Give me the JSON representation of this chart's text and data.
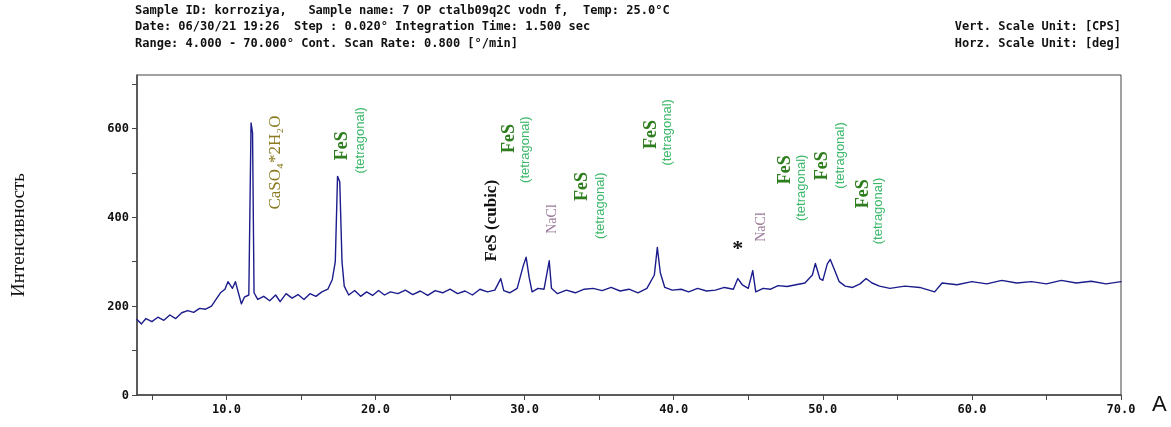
{
  "chart_data": {
    "type": "line",
    "ylabel": "Интенсивность",
    "annotations": [
      "Sample ID: korroziya,   Sample name: 7 OP ctalb09q2C vodn f,  Temp: 25.0°C",
      "Date: 06/30/21 19:26  Step : 0.020° Integration Time: 1.500 sec",
      "Vert. Scale Unit: [CPS]",
      "Range: 4.000 - 70.000° Cont. Scan Rate: 0.800 [°/min]",
      "Horz. Scale Unit: [deg]",
      "A",
      "CaSO₄*2H₂O",
      "FeS",
      "(tetragonal)",
      "FeS (cubic)",
      "FeS",
      "(tetragonal)",
      "NaCl",
      "FeS",
      "(tetragonal)",
      "FeS",
      "(tetragonal)",
      "*",
      "NaCl",
      "FeS",
      "(tetragonal)",
      "FeS",
      "(tetragonal)",
      "FeS",
      "(tetragonal)"
    ],
    "xlim": [
      4,
      70
    ],
    "xticks": [
      {
        "value": 5,
        "label": null
      },
      {
        "value": 10,
        "label": "10.0"
      },
      {
        "value": 15,
        "label": null
      },
      {
        "value": 20,
        "label": "20.0"
      },
      {
        "value": 25,
        "label": null
      },
      {
        "value": 30,
        "label": "30.0"
      },
      {
        "value": 35,
        "label": null
      },
      {
        "value": 40,
        "label": "40.0"
      },
      {
        "value": 45,
        "label": null
      },
      {
        "value": 50,
        "label": "50.0"
      },
      {
        "value": 55,
        "label": null
      },
      {
        "value": 60,
        "label": "60.0"
      },
      {
        "value": 65,
        "label": null
      },
      {
        "value": 70,
        "label": "70.0"
      }
    ],
    "ylim": [
      0,
      720
    ],
    "yticks": [
      0,
      {
        "value": 100,
        "label": null
      },
      200,
      {
        "value": 300,
        "label": null
      },
      400,
      {
        "value": 500,
        "label": null
      },
      600,
      {
        "value": 700,
        "label": null
      }
    ],
    "grid": false,
    "marker": "none",
    "line_style": "solid",
    "series": [
      {
        "color": "#1c1c8c",
        "x": [
          4.0,
          4.3,
          4.6,
          5.0,
          5.4,
          5.8,
          6.2,
          6.6,
          7.0,
          7.4,
          7.8,
          8.2,
          8.6,
          9.0,
          9.3,
          9.6,
          9.9,
          10.1,
          10.4,
          10.6,
          10.8,
          11.0,
          11.2,
          11.5,
          11.65,
          11.75,
          11.85,
          12.1,
          12.5,
          12.9,
          13.3,
          13.6,
          14.0,
          14.4,
          14.8,
          15.2,
          15.6,
          16.0,
          16.4,
          16.8,
          17.1,
          17.3,
          17.45,
          17.6,
          17.75,
          17.9,
          18.2,
          18.6,
          19.0,
          19.4,
          19.8,
          20.2,
          20.6,
          21.0,
          21.5,
          22.0,
          22.5,
          23.0,
          23.5,
          24.0,
          24.5,
          25.0,
          25.5,
          26.0,
          26.5,
          27.0,
          27.5,
          28.0,
          28.4,
          28.6,
          29.0,
          29.5,
          29.9,
          30.1,
          30.3,
          30.5,
          30.9,
          31.3,
          31.65,
          31.8,
          32.2,
          32.8,
          33.4,
          34.0,
          34.6,
          35.2,
          35.8,
          36.4,
          37.0,
          37.6,
          38.2,
          38.7,
          38.9,
          39.1,
          39.4,
          39.9,
          40.5,
          41.0,
          41.6,
          42.2,
          42.8,
          43.4,
          44.0,
          44.3,
          44.6,
          45.0,
          45.3,
          45.5,
          46.0,
          46.5,
          47.0,
          47.6,
          48.2,
          48.8,
          49.3,
          49.5,
          49.8,
          50.0,
          50.3,
          50.5,
          50.8,
          51.1,
          51.5,
          52.0,
          52.5,
          52.9,
          53.3,
          53.8,
          54.5,
          55.5,
          56.5,
          57.5,
          58.0,
          59.0,
          60.0,
          61.0,
          62.0,
          63.0,
          64.0,
          65.0,
          66.0,
          67.0,
          68.0,
          69.0,
          70.0
        ],
        "values": [
          170,
          160,
          172,
          165,
          175,
          168,
          180,
          172,
          185,
          190,
          186,
          195,
          193,
          200,
          215,
          230,
          238,
          255,
          240,
          255,
          230,
          205,
          220,
          225,
          612,
          590,
          230,
          215,
          222,
          212,
          225,
          210,
          228,
          218,
          226,
          215,
          228,
          222,
          232,
          238,
          260,
          300,
          492,
          480,
          300,
          245,
          225,
          235,
          222,
          232,
          224,
          235,
          225,
          232,
          228,
          236,
          226,
          234,
          224,
          235,
          230,
          238,
          228,
          234,
          225,
          238,
          232,
          236,
          262,
          235,
          230,
          240,
          290,
          310,
          265,
          232,
          240,
          238,
          302,
          240,
          228,
          236,
          230,
          238,
          240,
          235,
          242,
          234,
          238,
          230,
          240,
          270,
          332,
          275,
          242,
          236,
          238,
          232,
          240,
          234,
          236,
          242,
          238,
          262,
          248,
          240,
          280,
          232,
          240,
          238,
          246,
          244,
          248,
          252,
          270,
          296,
          262,
          258,
          295,
          305,
          280,
          255,
          245,
          242,
          250,
          262,
          252,
          245,
          240,
          245,
          242,
          232,
          252,
          248,
          255,
          250,
          258,
          252,
          255,
          250,
          258,
          252,
          256,
          250,
          255
        ]
      }
    ]
  }
}
